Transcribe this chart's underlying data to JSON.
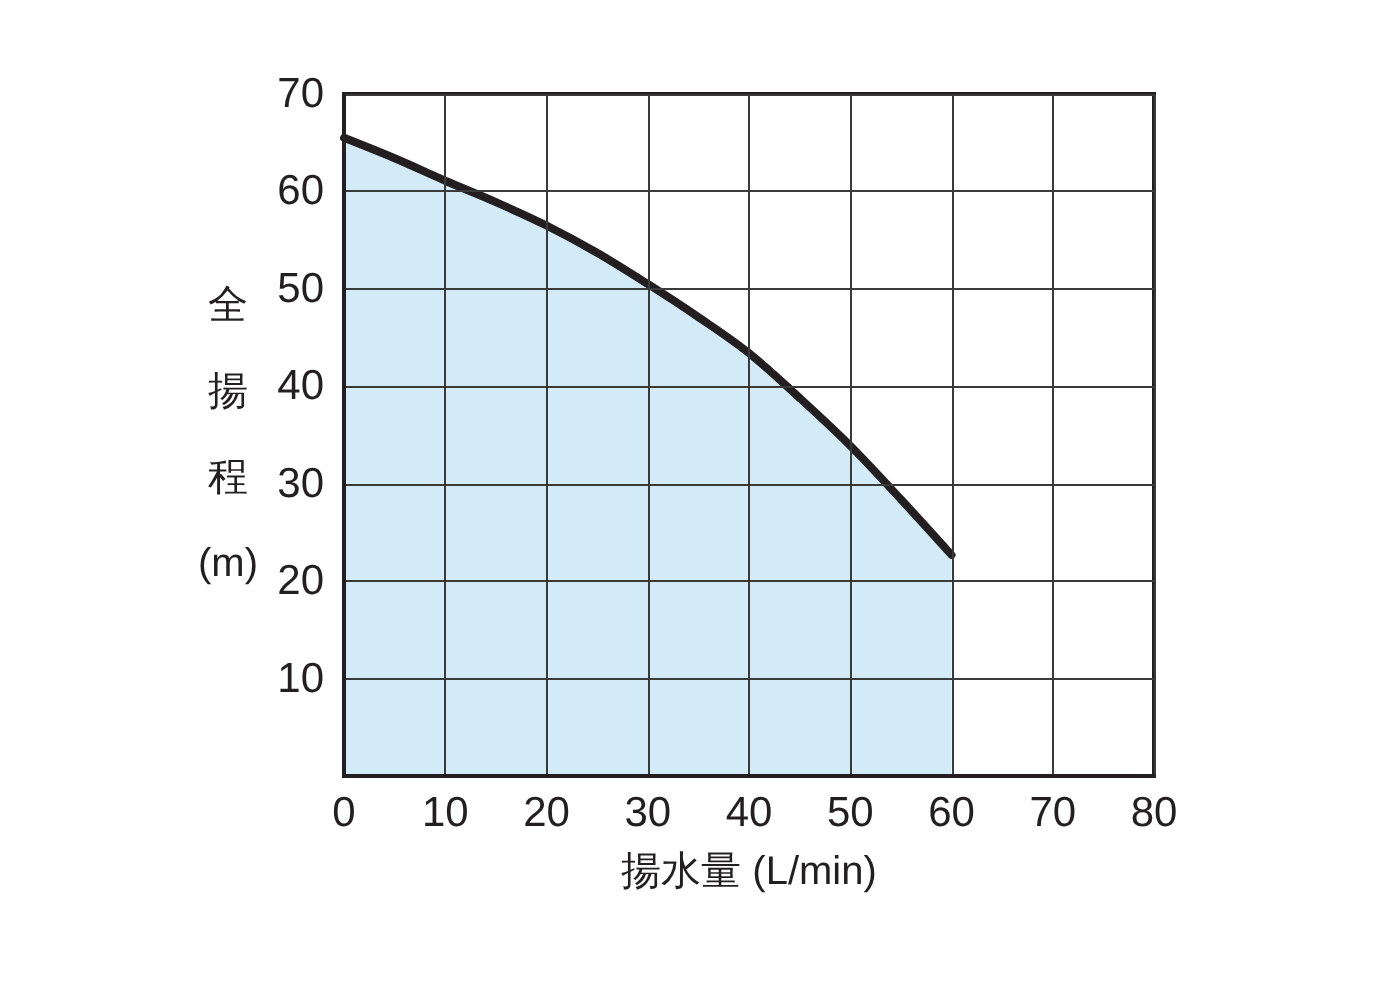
{
  "chart_data": {
    "type": "area",
    "xlabel": "揚水量 (L/min)",
    "ylabel": "全揚程(m)",
    "x": [
      0,
      5,
      10,
      15,
      20,
      25,
      30,
      35,
      40,
      45,
      50,
      55,
      60
    ],
    "series": [
      {
        "color": "#d3ebf7",
        "values": [
          65.5,
          63.4,
          61.1,
          58.9,
          56.5,
          53.7,
          50.5,
          47.1,
          43.4,
          38.8,
          33.9,
          28.4,
          22.7
        ]
      }
    ],
    "xlim": [
      0,
      80
    ],
    "xticks": [
      0,
      10,
      20,
      30,
      40,
      50,
      60,
      70,
      80
    ],
    "ylim": [
      0,
      70
    ],
    "yticks": [
      {
        "value": 0,
        "label": null
      },
      10,
      20,
      30,
      40,
      50,
      60,
      70
    ],
    "grid": true,
    "marker": "none"
  }
}
